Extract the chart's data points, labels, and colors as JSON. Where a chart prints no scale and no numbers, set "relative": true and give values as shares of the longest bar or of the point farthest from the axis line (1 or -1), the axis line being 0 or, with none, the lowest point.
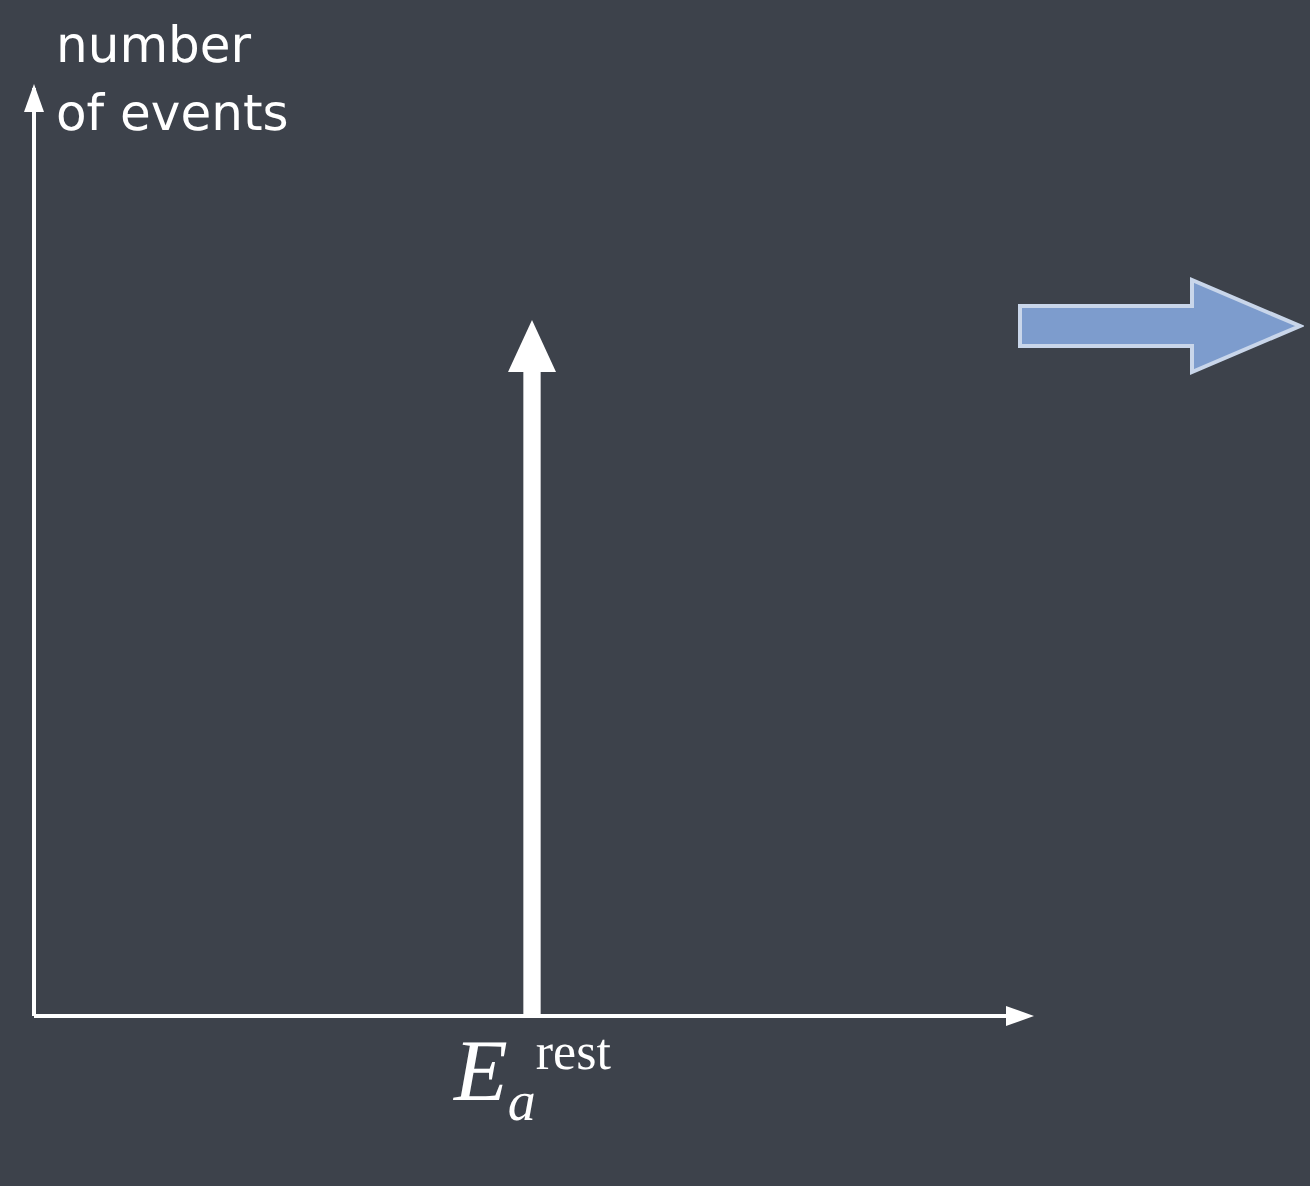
{
  "chart_data": {
    "type": "bar",
    "relative": true,
    "ylabel": "number of events",
    "categories": [
      "E$_{a}$$^{rest}$"
    ],
    "values": [
      1
    ],
    "color": "#ffffff",
    "grid": false,
    "legend": false,
    "tick_labels": "x"
  }
}
